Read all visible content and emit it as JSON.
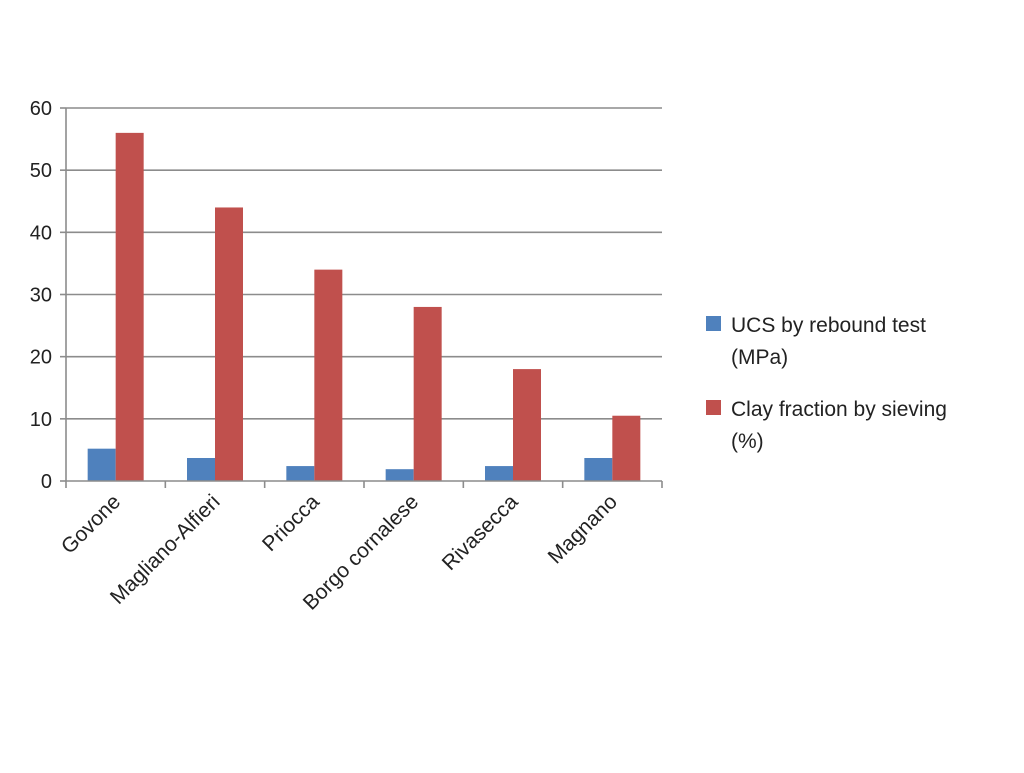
{
  "chart_data": {
    "type": "bar",
    "title": "",
    "xlabel": "",
    "ylabel": "",
    "categories": [
      "Govone",
      "Magliano-Alfieri",
      "Priocca",
      "Borgo cornalese",
      "Rivasecca",
      "Magnano"
    ],
    "series": [
      {
        "name": "UCS by rebound test (MPa)",
        "legend_lines": [
          "UCS by rebound test",
          "(MPa)"
        ],
        "color": "#4f81bd",
        "values": [
          5.2,
          3.7,
          2.4,
          1.9,
          2.4,
          3.7
        ]
      },
      {
        "name": "Clay fraction by sieving (%)",
        "legend_lines": [
          "Clay fraction by sieving",
          "(%)"
        ],
        "color": "#c0504d",
        "values": [
          56,
          44,
          34,
          28,
          18,
          10.5
        ]
      }
    ],
    "ylim": [
      0,
      60
    ],
    "yticks": [
      0,
      10,
      20,
      30,
      40,
      50,
      60
    ],
    "grid": true,
    "legend_position": "right"
  }
}
